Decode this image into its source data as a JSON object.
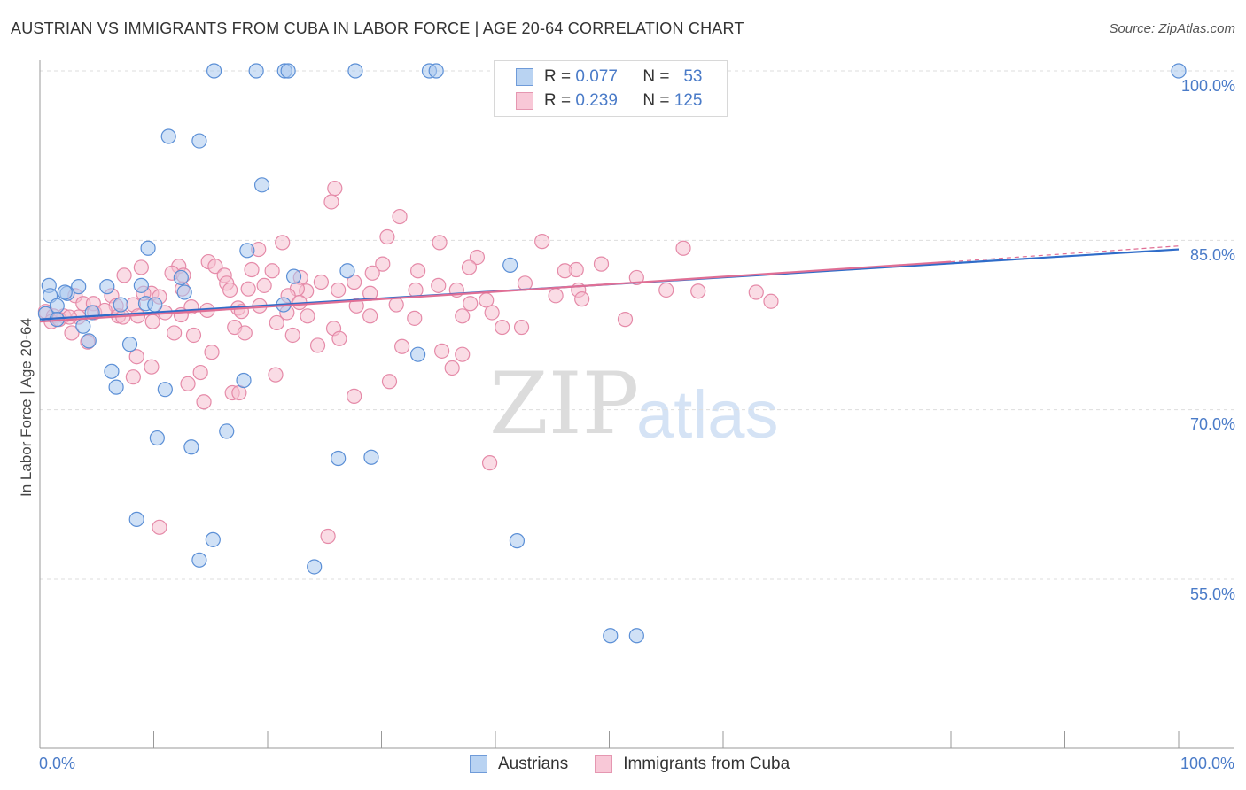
{
  "title": "AUSTRIAN VS IMMIGRANTS FROM CUBA IN LABOR FORCE | AGE 20-64 CORRELATION CHART",
  "source": "Source: ZipAtlas.com",
  "watermark": {
    "zip": "ZIP",
    "atlas": "atlas"
  },
  "legend_top": {
    "rows": [
      {
        "r_label": "R =",
        "r_value": "0.077",
        "n_label": "N =",
        "n_value": "53"
      },
      {
        "r_label": "R =",
        "r_value": "0.239",
        "n_label": "N =",
        "n_value": "125"
      }
    ]
  },
  "colors": {
    "austrians_fill": "#a9c8ee",
    "austrians_stroke": "#5b8fd6",
    "austrians_line": "#2f6cc9",
    "cuba_fill": "#f6bfd0",
    "cuba_stroke": "#e58aa8",
    "cuba_line": "#e06f95",
    "grid": "#dddddd",
    "tick_text": "#4a7bc8"
  },
  "chart_data": {
    "type": "scatter",
    "title": "AUSTRIAN VS IMMIGRANTS FROM CUBA IN LABOR FORCE | AGE 20-64 CORRELATION CHART",
    "xlabel": "",
    "ylabel": "In Labor Force | Age 20-64",
    "xlim": [
      0,
      100
    ],
    "ylim": [
      40,
      102
    ],
    "y_ticks": [
      {
        "value": 100,
        "label": "100.0%"
      },
      {
        "value": 85,
        "label": "85.0%"
      },
      {
        "value": 70,
        "label": "70.0%"
      },
      {
        "value": 55,
        "label": "55.0%"
      }
    ],
    "x_tick_labels": [
      {
        "value": 0,
        "label": "0.0%"
      },
      {
        "value": 100,
        "label": "100.0%"
      }
    ],
    "grid": true,
    "legend_position": "bottom",
    "series": [
      {
        "name": "Austrians",
        "r": 0.077,
        "n": 53,
        "trend": {
          "x0": 0,
          "y0": 78.0,
          "x1": 100,
          "y1": 84.2
        },
        "points": [
          [
            15.3,
            100
          ],
          [
            19,
            100
          ],
          [
            21.5,
            100
          ],
          [
            21.8,
            100
          ],
          [
            27.7,
            100
          ],
          [
            34.2,
            100
          ],
          [
            34.8,
            100
          ],
          [
            100,
            100
          ],
          [
            11.3,
            94.2
          ],
          [
            14,
            93.8
          ],
          [
            19.5,
            89.9
          ],
          [
            9.5,
            84.3
          ],
          [
            18.2,
            84.1
          ],
          [
            0.8,
            81
          ],
          [
            3.4,
            80.9
          ],
          [
            5.9,
            80.9
          ],
          [
            8.9,
            81
          ],
          [
            0.9,
            80.1
          ],
          [
            2.4,
            80.3
          ],
          [
            12.4,
            81.7
          ],
          [
            12.7,
            80.4
          ],
          [
            27,
            82.3
          ],
          [
            41.3,
            82.8
          ],
          [
            22.3,
            81.8
          ],
          [
            1.5,
            79.2
          ],
          [
            7.1,
            79.3
          ],
          [
            9.3,
            79.4
          ],
          [
            4.6,
            78.6
          ],
          [
            21.4,
            79.3
          ],
          [
            3.8,
            77.4
          ],
          [
            4.3,
            76.1
          ],
          [
            7.9,
            75.8
          ],
          [
            33.2,
            74.9
          ],
          [
            6.3,
            73.4
          ],
          [
            17.9,
            72.6
          ],
          [
            6.7,
            72
          ],
          [
            11,
            71.8
          ],
          [
            10.3,
            67.5
          ],
          [
            13.3,
            66.7
          ],
          [
            16.4,
            68.1
          ],
          [
            26.2,
            65.7
          ],
          [
            29.1,
            65.8
          ],
          [
            8.5,
            60.3
          ],
          [
            15.2,
            58.5
          ],
          [
            41.9,
            58.4
          ],
          [
            14,
            56.7
          ],
          [
            24.1,
            56.1
          ],
          [
            50.1,
            50
          ],
          [
            52.4,
            50
          ],
          [
            0.5,
            78.5
          ],
          [
            1.5,
            78
          ],
          [
            2.2,
            80.4
          ],
          [
            10.1,
            79.3
          ]
        ]
      },
      {
        "name": "Immigrants from Cuba",
        "r": 0.239,
        "n": 125,
        "trend": {
          "x0": 0,
          "y0": 77.8,
          "x1": 80,
          "y1": 83.1
        },
        "trend_ext": {
          "x0": 80,
          "y0": 83.1,
          "x1": 100,
          "y1": 84.5
        },
        "points": [
          [
            25.9,
            89.6
          ],
          [
            25.6,
            88.4
          ],
          [
            31.6,
            87.1
          ],
          [
            30.5,
            85.3
          ],
          [
            35.1,
            84.8
          ],
          [
            19.2,
            84.2
          ],
          [
            21.3,
            84.8
          ],
          [
            44.1,
            84.9
          ],
          [
            56.5,
            84.3
          ],
          [
            38.4,
            83.5
          ],
          [
            30.1,
            82.9
          ],
          [
            33.2,
            82.3
          ],
          [
            47.1,
            82.4
          ],
          [
            49.3,
            82.9
          ],
          [
            8.9,
            82.6
          ],
          [
            12.2,
            82.7
          ],
          [
            14.8,
            83.1
          ],
          [
            15.4,
            82.7
          ],
          [
            18.6,
            82.4
          ],
          [
            20.4,
            82.3
          ],
          [
            22.9,
            81.7
          ],
          [
            29.2,
            82.1
          ],
          [
            37.7,
            82.6
          ],
          [
            52.4,
            81.7
          ],
          [
            46.1,
            82.3
          ],
          [
            7.4,
            81.9
          ],
          [
            11.6,
            82.1
          ],
          [
            12.6,
            81.9
          ],
          [
            16.2,
            81.9
          ],
          [
            16.4,
            81.2
          ],
          [
            19.7,
            81
          ],
          [
            24.7,
            81.3
          ],
          [
            27.6,
            81.3
          ],
          [
            35,
            81
          ],
          [
            42.6,
            81.2
          ],
          [
            36.6,
            80.6
          ],
          [
            33,
            80.6
          ],
          [
            23.4,
            80.5
          ],
          [
            26.2,
            80.6
          ],
          [
            9.8,
            80.3
          ],
          [
            12.5,
            80.7
          ],
          [
            16.7,
            80.6
          ],
          [
            18.3,
            80.7
          ],
          [
            22.6,
            80.7
          ],
          [
            47.3,
            80.6
          ],
          [
            55,
            80.6
          ],
          [
            57.8,
            80.5
          ],
          [
            62.9,
            80.4
          ],
          [
            3.1,
            80.1
          ],
          [
            6.3,
            80.1
          ],
          [
            9.1,
            80.3
          ],
          [
            10.5,
            80
          ],
          [
            21.8,
            80.1
          ],
          [
            29,
            80.3
          ],
          [
            45.3,
            80.1
          ],
          [
            47.6,
            79.8
          ],
          [
            64.2,
            79.6
          ],
          [
            3.8,
            79.4
          ],
          [
            4.7,
            79.4
          ],
          [
            6.7,
            79.2
          ],
          [
            8.2,
            79.3
          ],
          [
            13.3,
            79.1
          ],
          [
            17.4,
            79
          ],
          [
            19.3,
            79.2
          ],
          [
            22.8,
            79.5
          ],
          [
            27.8,
            79.2
          ],
          [
            31.3,
            79.3
          ],
          [
            37.8,
            79.4
          ],
          [
            39.2,
            79.7
          ],
          [
            0.5,
            78.7
          ],
          [
            1.2,
            78.3
          ],
          [
            2.1,
            78.3
          ],
          [
            3.4,
            78.2
          ],
          [
            4.8,
            78.6
          ],
          [
            5.7,
            78.8
          ],
          [
            6.9,
            78.3
          ],
          [
            8.6,
            78.3
          ],
          [
            11,
            78.6
          ],
          [
            12.4,
            78.4
          ],
          [
            14.7,
            78.8
          ],
          [
            17.7,
            78.7
          ],
          [
            21.7,
            78.6
          ],
          [
            23.5,
            78.3
          ],
          [
            29,
            78.3
          ],
          [
            32.9,
            78.1
          ],
          [
            37.1,
            78.3
          ],
          [
            39.7,
            78.6
          ],
          [
            51.4,
            78
          ],
          [
            1,
            77.8
          ],
          [
            1.7,
            78
          ],
          [
            2.6,
            78.2
          ],
          [
            7.3,
            78.2
          ],
          [
            9.9,
            77.8
          ],
          [
            17.1,
            77.3
          ],
          [
            20.8,
            77.7
          ],
          [
            25.8,
            77.2
          ],
          [
            40.6,
            77.3
          ],
          [
            42.3,
            77.3
          ],
          [
            35.3,
            75.2
          ],
          [
            37.1,
            74.9
          ],
          [
            11.8,
            76.8
          ],
          [
            13.5,
            76.6
          ],
          [
            18,
            76.8
          ],
          [
            22.2,
            76.6
          ],
          [
            24.4,
            75.7
          ],
          [
            26.3,
            76.3
          ],
          [
            31.8,
            75.6
          ],
          [
            9.8,
            73.8
          ],
          [
            14.1,
            73.3
          ],
          [
            20.7,
            73.1
          ],
          [
            30.7,
            72.5
          ],
          [
            16.9,
            71.5
          ],
          [
            17.5,
            71.5
          ],
          [
            13,
            72.3
          ],
          [
            36.2,
            73.7
          ],
          [
            15.1,
            75.1
          ],
          [
            2.8,
            76.8
          ],
          [
            8.5,
            74.7
          ],
          [
            4.2,
            76
          ],
          [
            39.5,
            65.3
          ],
          [
            10.5,
            59.6
          ],
          [
            25.3,
            58.8
          ],
          [
            8.2,
            72.9
          ],
          [
            14.4,
            70.7
          ],
          [
            27.6,
            71.2
          ]
        ]
      }
    ]
  }
}
